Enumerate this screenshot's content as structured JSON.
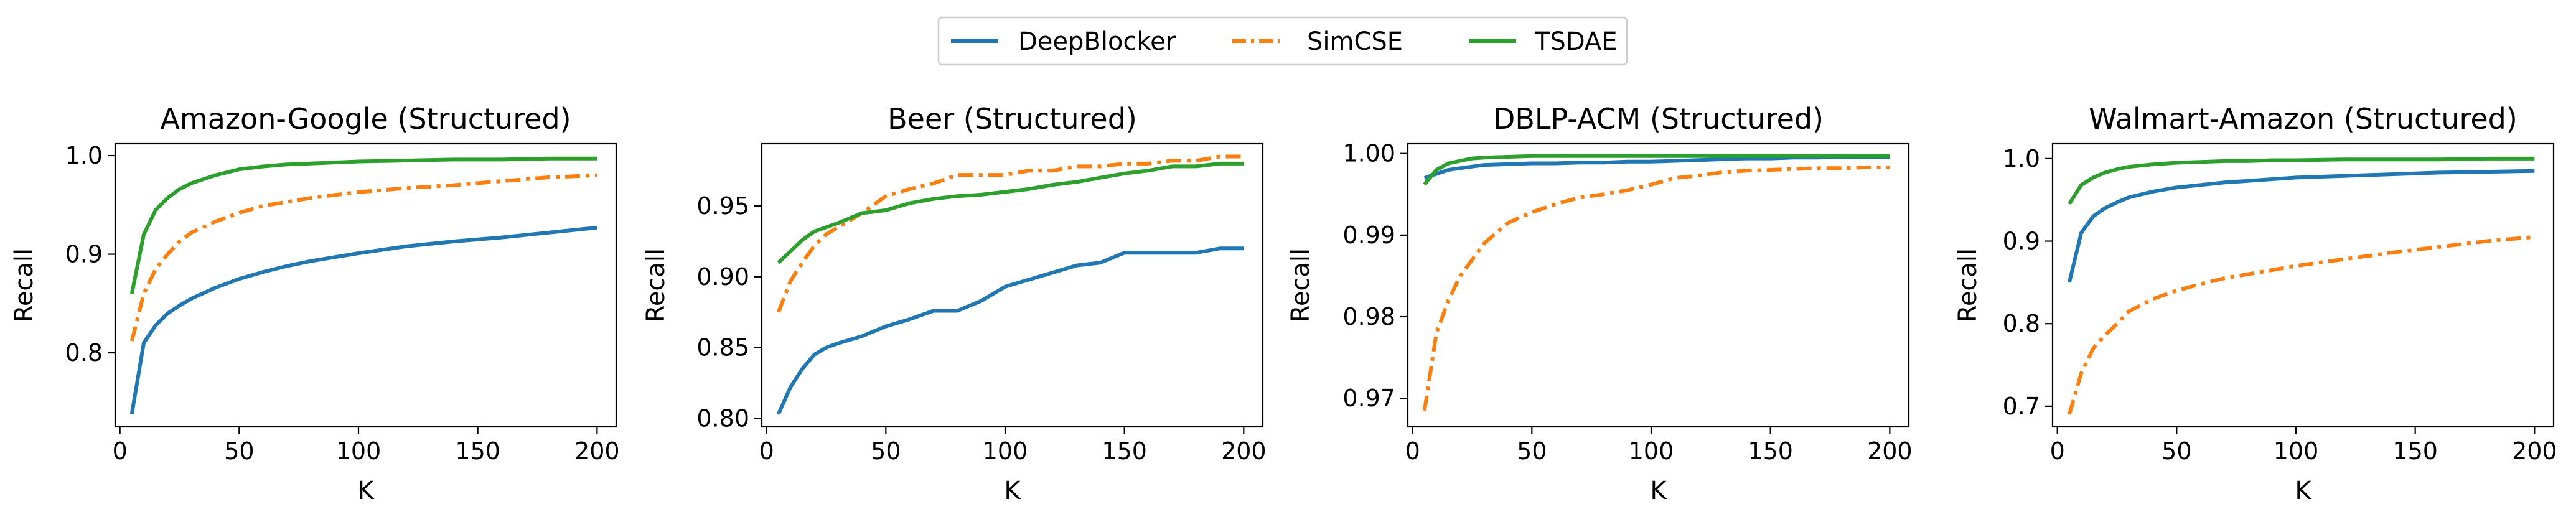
{
  "legend": {
    "items": [
      {
        "label": "DeepBlocker",
        "color": "#1f77b4",
        "dash": "solid"
      },
      {
        "label": "SimCSE",
        "color": "#ff7f0e",
        "dash": "dashdot"
      },
      {
        "label": "TSDAE",
        "color": "#2ca02c",
        "dash": "solid"
      }
    ]
  },
  "chart_data": [
    {
      "type": "line",
      "title": "Amazon-Google (Structured)",
      "xlabel": "K",
      "ylabel": "Recall",
      "xlim": [
        -2,
        208
      ],
      "ylim": [
        0.725,
        1.012
      ],
      "xticks": [
        0,
        50,
        100,
        150,
        200
      ],
      "xtick_labels": [
        "0",
        "50",
        "100",
        "150",
        "200"
      ],
      "yticks": [
        0.8,
        0.9,
        1.0
      ],
      "ytick_labels": [
        "0.8",
        "0.9",
        "1.0"
      ],
      "x": [
        5,
        10,
        15,
        20,
        25,
        30,
        40,
        50,
        60,
        70,
        80,
        90,
        100,
        120,
        140,
        160,
        180,
        200
      ],
      "series": [
        {
          "name": "DeepBlocker",
          "color": "#1f77b4",
          "dash": "solid",
          "values": [
            0.738,
            0.81,
            0.828,
            0.84,
            0.848,
            0.855,
            0.866,
            0.875,
            0.882,
            0.888,
            0.893,
            0.897,
            0.901,
            0.908,
            0.913,
            0.917,
            0.922,
            0.927
          ]
        },
        {
          "name": "SimCSE",
          "color": "#ff7f0e",
          "dash": "dashdot",
          "values": [
            0.812,
            0.86,
            0.885,
            0.9,
            0.913,
            0.922,
            0.933,
            0.942,
            0.949,
            0.953,
            0.957,
            0.96,
            0.963,
            0.967,
            0.97,
            0.974,
            0.978,
            0.98
          ]
        },
        {
          "name": "TSDAE",
          "color": "#2ca02c",
          "dash": "solid",
          "values": [
            0.86,
            0.92,
            0.945,
            0.957,
            0.966,
            0.972,
            0.98,
            0.986,
            0.989,
            0.991,
            0.992,
            0.993,
            0.994,
            0.995,
            0.996,
            0.996,
            0.997,
            0.997
          ]
        }
      ]
    },
    {
      "type": "line",
      "title": "Beer (Structured)",
      "xlabel": "K",
      "ylabel": "Recall",
      "xlim": [
        -2,
        208
      ],
      "ylim": [
        0.794,
        0.994
      ],
      "xticks": [
        0,
        50,
        100,
        150,
        200
      ],
      "xtick_labels": [
        "0",
        "50",
        "100",
        "150",
        "200"
      ],
      "yticks": [
        0.8,
        0.85,
        0.9,
        0.95
      ],
      "ytick_labels": [
        "0.80",
        "0.85",
        "0.90",
        "0.95"
      ],
      "x": [
        5,
        10,
        15,
        20,
        25,
        30,
        40,
        50,
        60,
        70,
        80,
        90,
        100,
        110,
        120,
        130,
        140,
        150,
        160,
        170,
        180,
        190,
        200
      ],
      "series": [
        {
          "name": "DeepBlocker",
          "color": "#1f77b4",
          "dash": "solid",
          "values": [
            0.803,
            0.822,
            0.835,
            0.845,
            0.85,
            0.853,
            0.858,
            0.865,
            0.87,
            0.876,
            0.876,
            0.883,
            0.893,
            0.898,
            0.903,
            0.908,
            0.91,
            0.917,
            0.917,
            0.917,
            0.917,
            0.92,
            0.92
          ]
        },
        {
          "name": "SimCSE",
          "color": "#ff7f0e",
          "dash": "dashdot",
          "values": [
            0.875,
            0.897,
            0.91,
            0.922,
            0.93,
            0.935,
            0.945,
            0.957,
            0.962,
            0.966,
            0.972,
            0.972,
            0.972,
            0.975,
            0.975,
            0.978,
            0.978,
            0.98,
            0.98,
            0.982,
            0.982,
            0.985,
            0.985
          ]
        },
        {
          "name": "TSDAE",
          "color": "#2ca02c",
          "dash": "solid",
          "values": [
            0.91,
            0.918,
            0.926,
            0.932,
            0.935,
            0.938,
            0.945,
            0.947,
            0.952,
            0.955,
            0.957,
            0.958,
            0.96,
            0.962,
            0.965,
            0.967,
            0.97,
            0.973,
            0.975,
            0.978,
            0.978,
            0.98,
            0.98
          ]
        }
      ]
    },
    {
      "type": "line",
      "title": "DBLP-ACM (Structured)",
      "xlabel": "K",
      "ylabel": "Recall",
      "xlim": [
        -2,
        208
      ],
      "ylim": [
        0.9665,
        1.0012
      ],
      "xticks": [
        0,
        50,
        100,
        150,
        200
      ],
      "xtick_labels": [
        "0",
        "50",
        "100",
        "150",
        "200"
      ],
      "yticks": [
        0.97,
        0.98,
        0.99,
        1.0
      ],
      "ytick_labels": [
        "0.97",
        "0.98",
        "0.99",
        "1.00"
      ],
      "x": [
        5,
        10,
        15,
        20,
        25,
        30,
        40,
        50,
        60,
        70,
        80,
        90,
        100,
        110,
        120,
        130,
        140,
        150,
        160,
        170,
        180,
        190,
        200
      ],
      "series": [
        {
          "name": "DeepBlocker",
          "color": "#1f77b4",
          "dash": "solid",
          "values": [
            0.997,
            0.9975,
            0.998,
            0.9982,
            0.9984,
            0.9986,
            0.9987,
            0.9988,
            0.9988,
            0.9989,
            0.9989,
            0.999,
            0.999,
            0.9991,
            0.9992,
            0.9993,
            0.9994,
            0.9994,
            0.9995,
            0.9995,
            0.9996,
            0.9996,
            0.9996
          ]
        },
        {
          "name": "SimCSE",
          "color": "#ff7f0e",
          "dash": "dashdot",
          "values": [
            0.9685,
            0.978,
            0.982,
            0.985,
            0.987,
            0.989,
            0.9915,
            0.9928,
            0.9938,
            0.9946,
            0.995,
            0.9955,
            0.9962,
            0.997,
            0.9973,
            0.9977,
            0.9979,
            0.998,
            0.9981,
            0.9982,
            0.9982,
            0.9983,
            0.9983
          ]
        },
        {
          "name": "TSDAE",
          "color": "#2ca02c",
          "dash": "solid",
          "values": [
            0.9962,
            0.998,
            0.9988,
            0.9991,
            0.9994,
            0.9995,
            0.9996,
            0.9997,
            0.9997,
            0.9997,
            0.9997,
            0.9997,
            0.9997,
            0.9997,
            0.9997,
            0.9997,
            0.9997,
            0.9997,
            0.9997,
            0.9997,
            0.9997,
            0.9997,
            0.9997
          ]
        }
      ]
    },
    {
      "type": "line",
      "title": "Walmart-Amazon (Structured)",
      "xlabel": "K",
      "ylabel": "Recall",
      "xlim": [
        -2,
        208
      ],
      "ylim": [
        0.675,
        1.018
      ],
      "xticks": [
        0,
        50,
        100,
        150,
        200
      ],
      "xtick_labels": [
        "0",
        "50",
        "100",
        "150",
        "200"
      ],
      "yticks": [
        0.7,
        0.8,
        0.9,
        1.0
      ],
      "ytick_labels": [
        "0.7",
        "0.8",
        "0.9",
        "1.0"
      ],
      "x": [
        5,
        10,
        15,
        20,
        25,
        30,
        40,
        50,
        60,
        70,
        80,
        90,
        100,
        120,
        140,
        160,
        180,
        200
      ],
      "series": [
        {
          "name": "DeepBlocker",
          "color": "#1f77b4",
          "dash": "solid",
          "values": [
            0.85,
            0.91,
            0.93,
            0.94,
            0.947,
            0.953,
            0.96,
            0.965,
            0.968,
            0.971,
            0.973,
            0.975,
            0.977,
            0.979,
            0.981,
            0.983,
            0.984,
            0.985
          ]
        },
        {
          "name": "SimCSE",
          "color": "#ff7f0e",
          "dash": "dashdot",
          "values": [
            0.69,
            0.74,
            0.77,
            0.786,
            0.8,
            0.815,
            0.83,
            0.84,
            0.848,
            0.855,
            0.86,
            0.865,
            0.87,
            0.878,
            0.886,
            0.893,
            0.9,
            0.905
          ]
        },
        {
          "name": "TSDAE",
          "color": "#2ca02c",
          "dash": "solid",
          "values": [
            0.945,
            0.968,
            0.977,
            0.983,
            0.987,
            0.99,
            0.993,
            0.995,
            0.996,
            0.997,
            0.997,
            0.998,
            0.998,
            0.999,
            0.999,
            0.999,
            1.0,
            1.0
          ]
        }
      ]
    }
  ]
}
